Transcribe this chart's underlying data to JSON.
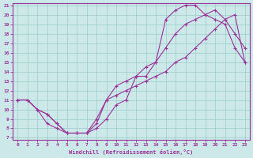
{
  "xlabel": "Windchill (Refroidissement éolien,°C)",
  "bg_color": "#cce8e8",
  "grid_color": "#99cccc",
  "line_color": "#993399",
  "xlim": [
    0,
    23
  ],
  "ylim": [
    7,
    21
  ],
  "xticks": [
    0,
    1,
    2,
    3,
    4,
    5,
    6,
    7,
    8,
    9,
    10,
    11,
    12,
    13,
    14,
    15,
    16,
    17,
    18,
    19,
    20,
    21,
    22,
    23
  ],
  "yticks": [
    7,
    8,
    9,
    10,
    11,
    12,
    13,
    14,
    15,
    16,
    17,
    18,
    19,
    20,
    21
  ],
  "curve1_x": [
    0,
    1,
    2,
    3,
    4,
    5,
    6,
    7,
    8,
    9,
    10,
    11,
    12,
    13,
    14,
    15,
    16,
    17,
    18,
    19,
    20,
    21,
    22,
    23
  ],
  "curve1_y": [
    11,
    11,
    10,
    9.5,
    8.5,
    7.5,
    7.5,
    7.5,
    8.5,
    11.0,
    11.5,
    12.0,
    12.5,
    13.0,
    13.5,
    14.0,
    15.0,
    15.5,
    16.5,
    17.5,
    18.5,
    19.5,
    20.0,
    15.0
  ],
  "curve2_x": [
    0,
    1,
    2,
    3,
    4,
    5,
    6,
    7,
    8,
    9,
    10,
    11,
    12,
    13,
    14,
    15,
    16,
    17,
    18,
    19,
    20,
    21,
    22,
    23
  ],
  "curve2_y": [
    11,
    11,
    10,
    9.5,
    8.5,
    7.5,
    7.5,
    7.5,
    9.0,
    11.0,
    12.5,
    13.0,
    13.5,
    14.5,
    15.0,
    16.5,
    18.0,
    19.0,
    19.5,
    20.0,
    20.5,
    19.5,
    18.0,
    16.5
  ],
  "curve3_x": [
    0,
    1,
    2,
    3,
    4,
    5,
    6,
    7,
    8,
    9,
    10,
    11,
    12,
    13,
    14,
    15,
    16,
    17,
    18,
    19,
    20,
    21,
    22,
    23
  ],
  "curve3_y": [
    11,
    11,
    10,
    8.5,
    8.0,
    7.5,
    7.5,
    7.5,
    8.0,
    9.0,
    10.5,
    11.0,
    13.5,
    13.5,
    15.0,
    19.5,
    20.5,
    21.0,
    21.0,
    20.0,
    19.5,
    19.0,
    16.5,
    15.0
  ]
}
